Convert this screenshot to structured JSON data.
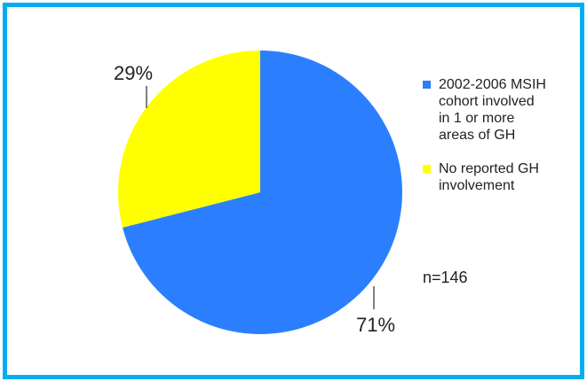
{
  "chart_data": {
    "type": "pie",
    "title": "",
    "slices": [
      {
        "name": "2002-2006 MSIH cohort involved in 1 or more areas of GH",
        "value": 71,
        "label": "71%",
        "color": "#2b7fff"
      },
      {
        "name": "No reported GH involvement",
        "value": 29,
        "label": "29%",
        "color": "#ffff00"
      }
    ],
    "legend_position": "right",
    "start": "top, clockwise",
    "note": "n=146"
  },
  "legend": {
    "items": [
      {
        "lines": [
          "2002-2006 MSIH",
          "cohort involved",
          "in 1 or more",
          "areas of GH"
        ],
        "color": "#2b7fff"
      },
      {
        "lines": [
          "No reported GH",
          "involvement"
        ],
        "color": "#ffff00"
      }
    ]
  },
  "border_color": "#00adef"
}
